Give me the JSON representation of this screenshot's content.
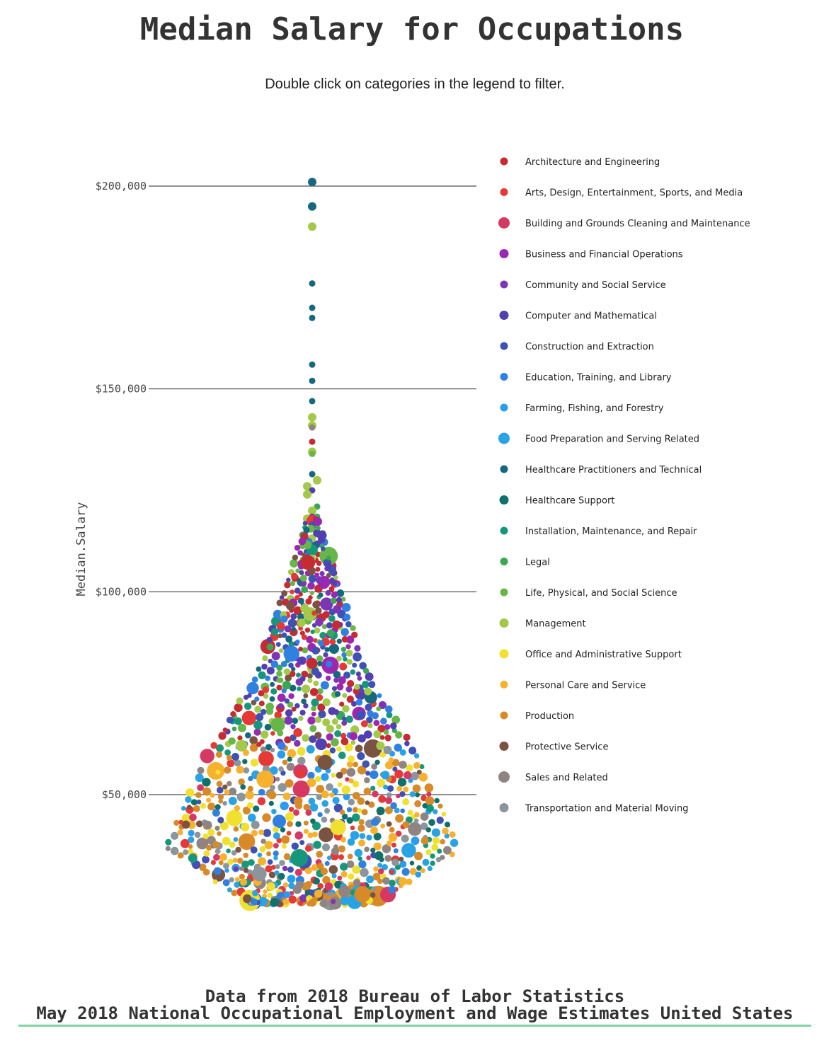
{
  "title": "Median Salary for Occupations",
  "subtitle": "Double click on categories in the legend to filter.",
  "footer": {
    "line1": "Data from 2018 Bureau of Labor Statistics",
    "line2": "May 2018 National Occupational Employment and Wage Estimates United States"
  },
  "chart_data": {
    "type": "scatter",
    "subtype": "beeswarm",
    "ylabel": "Median.Salary",
    "ylim": [
      20000,
      210000
    ],
    "y_ticks": [
      {
        "value": 50000,
        "label": "$50,000"
      },
      {
        "value": 100000,
        "label": "$100,000"
      },
      {
        "value": 150000,
        "label": "$150,000"
      },
      {
        "value": 200000,
        "label": "$200,000"
      }
    ],
    "grid": true,
    "legend_position": "right",
    "categories": [
      {
        "name": "Architecture and Engineering",
        "color": "#c62a33"
      },
      {
        "name": "Arts, Design, Entertainment, Sports, and Media",
        "color": "#e53935"
      },
      {
        "name": "Building and Grounds Cleaning and Maintenance",
        "color": "#d63864"
      },
      {
        "name": "Business and Financial Operations",
        "color": "#9c27b0"
      },
      {
        "name": "Community and Social Service",
        "color": "#7b35b5"
      },
      {
        "name": "Computer and Mathematical",
        "color": "#5340b0"
      },
      {
        "name": "Construction and Extraction",
        "color": "#3f51b5"
      },
      {
        "name": "Education, Training, and Library",
        "color": "#2f80e0"
      },
      {
        "name": "Farming, Fishing, and Forestry",
        "color": "#2a9cf0"
      },
      {
        "name": "Food Preparation and Serving Related",
        "color": "#29a3e3"
      },
      {
        "name": "Healthcare Practitioners and Technical",
        "color": "#15697f"
      },
      {
        "name": "Healthcare Support",
        "color": "#10706b"
      },
      {
        "name": "Installation, Maintenance, and Repair",
        "color": "#16977b"
      },
      {
        "name": "Legal",
        "color": "#3aa853"
      },
      {
        "name": "Life, Physical, and Social Science",
        "color": "#68b548"
      },
      {
        "name": "Management",
        "color": "#a3c94a"
      },
      {
        "name": "Office and Administrative Support",
        "color": "#f0e030"
      },
      {
        "name": "Personal Care and Service",
        "color": "#f6b22e"
      },
      {
        "name": "Production",
        "color": "#d98a28"
      },
      {
        "name": "Protective Service",
        "color": "#7a5343"
      },
      {
        "name": "Sales and Related",
        "color": "#8f8482"
      },
      {
        "name": "Transportation and Material Moving",
        "color": "#8c949c"
      }
    ],
    "points": [
      {
        "category": "Healthcare Practitioners and Technical",
        "salary": 201000
      },
      {
        "category": "Healthcare Practitioners and Technical",
        "salary": 195000
      },
      {
        "category": "Management",
        "salary": 190000
      },
      {
        "category": "Healthcare Practitioners and Technical",
        "salary": 176000
      },
      {
        "category": "Healthcare Practitioners and Technical",
        "salary": 170000
      },
      {
        "category": "Healthcare Practitioners and Technical",
        "salary": 167500
      },
      {
        "category": "Healthcare Practitioners and Technical",
        "salary": 156000
      },
      {
        "category": "Healthcare Practitioners and Technical",
        "salary": 152000
      },
      {
        "category": "Healthcare Practitioners and Technical",
        "salary": 147000
      },
      {
        "category": "Management",
        "salary": 143000
      },
      {
        "category": "Management",
        "salary": 141000
      },
      {
        "category": "Sales and Related",
        "salary": 140500
      },
      {
        "category": "Architecture and Engineering",
        "salary": 137000
      },
      {
        "category": "Management",
        "salary": 134500
      },
      {
        "category": "Life, Physical, and Social Science",
        "salary": 134000
      },
      {
        "category": "Healthcare Practitioners and Technical",
        "salary": 129000
      },
      {
        "category": "Management",
        "salary": 127500
      },
      {
        "category": "Management",
        "salary": 126000
      },
      {
        "category": "Computer and Mathematical",
        "salary": 125000
      },
      {
        "category": "Management",
        "salary": 124000
      },
      {
        "category": "Legal",
        "salary": 121000
      },
      {
        "category": "Management",
        "salary": 120000
      },
      {
        "category": "Legal",
        "salary": 118500
      },
      {
        "category": "Management",
        "salary": 118000
      },
      {
        "category": "Computer and Mathematical",
        "salary": 118500
      }
    ]
  }
}
